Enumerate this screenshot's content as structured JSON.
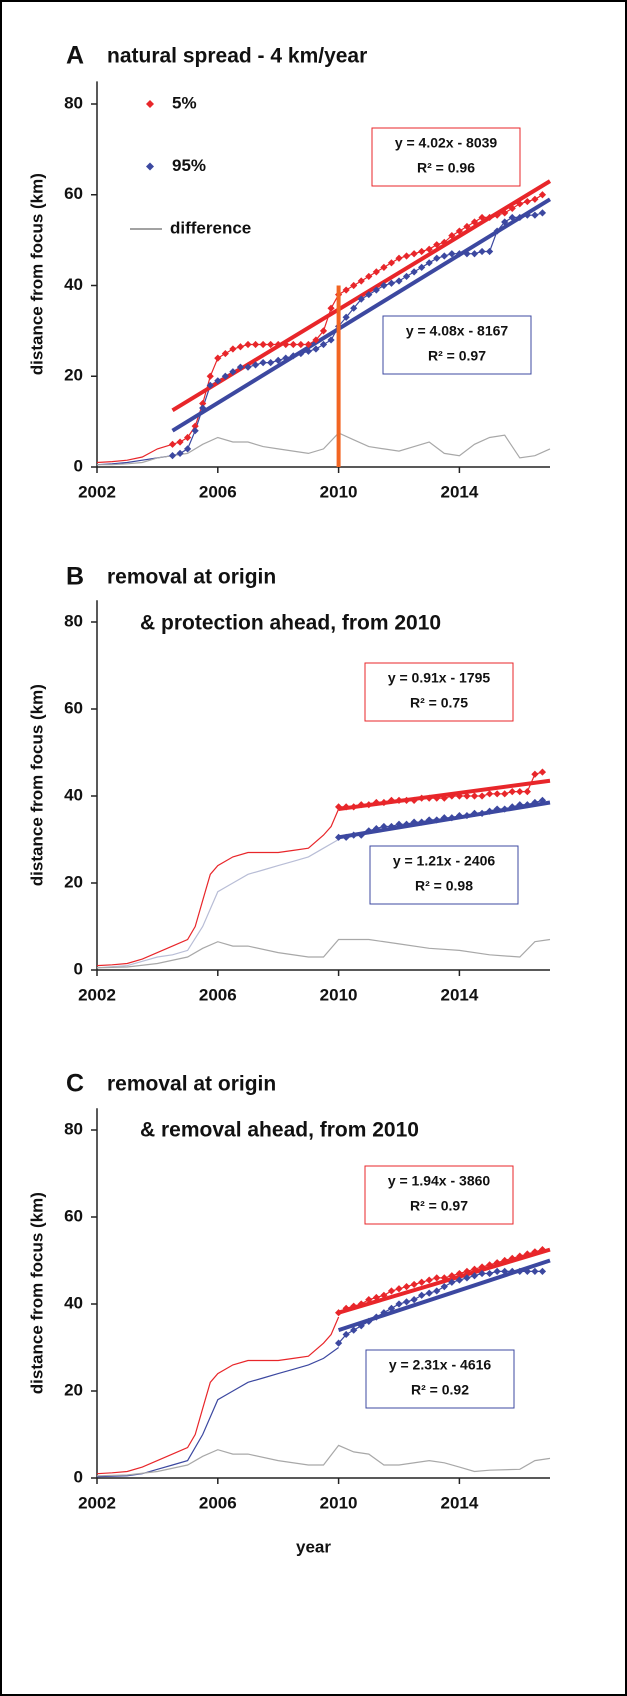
{
  "chart_data": [
    {
      "type": "line",
      "letter": "A",
      "title": [
        "natural spread - 4 km/year"
      ],
      "ylabel": "distance from focus (km)",
      "xlim": [
        2002,
        2017
      ],
      "xticks": [
        2002,
        2006,
        2010,
        2014
      ],
      "ylim": [
        0,
        85
      ],
      "yticks": [
        0,
        20,
        40,
        60,
        80
      ],
      "legend": true,
      "series": [
        {
          "color": "#e8262a",
          "x": [
            2002,
            2002.5,
            2003,
            2003.5,
            2004,
            2004.5
          ],
          "values": [
            1,
            1.2,
            1.5,
            2.2,
            4,
            5
          ]
        },
        {
          "name": "5%",
          "color": "#e8262a",
          "markers": true,
          "x": [
            2004.5,
            2004.75,
            2005,
            2005.25,
            2005.5,
            2005.75,
            2006,
            2006.25,
            2006.5,
            2006.75,
            2007,
            2007.25,
            2007.5,
            2007.75,
            2008,
            2008.25,
            2008.5,
            2008.75,
            2009,
            2009.25,
            2009.5,
            2009.75,
            2010,
            2010.25,
            2010.5,
            2010.75,
            2011,
            2011.25,
            2011.5,
            2011.75,
            2012,
            2012.25,
            2012.5,
            2012.75,
            2013,
            2013.25,
            2013.5,
            2013.75,
            2014,
            2014.25,
            2014.5,
            2014.75,
            2015,
            2015.25,
            2015.5,
            2015.75,
            2016,
            2016.25,
            2016.5,
            2016.75
          ],
          "values": [
            5,
            5.5,
            6.5,
            9,
            14,
            20,
            24,
            25,
            26,
            26.5,
            27,
            27,
            27,
            27,
            27,
            27,
            27,
            27,
            27,
            28,
            30,
            35,
            38,
            39,
            40,
            41,
            42,
            43,
            44,
            45,
            46,
            46.5,
            47,
            47.5,
            48,
            49,
            49.5,
            51,
            52,
            53,
            54,
            55,
            55,
            55.5,
            56,
            57,
            58,
            58.5,
            59,
            60
          ]
        },
        {
          "color": "#3c48a0",
          "x": [
            2002,
            2002.5,
            2003,
            2003.5,
            2004,
            2004.5
          ],
          "values": [
            0.5,
            0.7,
            1,
            1.5,
            2,
            2.5
          ]
        },
        {
          "name": "95%",
          "color": "#3c48a0",
          "markers": true,
          "x": [
            2004.5,
            2004.75,
            2005,
            2005.25,
            2005.5,
            2005.75,
            2006,
            2006.25,
            2006.5,
            2006.75,
            2007,
            2007.25,
            2007.5,
            2007.75,
            2008,
            2008.25,
            2008.5,
            2008.75,
            2009,
            2009.25,
            2009.5,
            2009.75,
            2010,
            2010.25,
            2010.5,
            2010.75,
            2011,
            2011.25,
            2011.5,
            2011.75,
            2012,
            2012.25,
            2012.5,
            2012.75,
            2013,
            2013.25,
            2013.5,
            2013.75,
            2014,
            2014.25,
            2014.5,
            2014.75,
            2015,
            2015.25,
            2015.5,
            2015.75,
            2016,
            2016.25,
            2016.5,
            2016.75
          ],
          "values": [
            2.5,
            3,
            4,
            8,
            13,
            18,
            19,
            20,
            21,
            22,
            22,
            22.5,
            23,
            23,
            23.5,
            24,
            24.5,
            25,
            25.5,
            26,
            27,
            28,
            31,
            33,
            35,
            37,
            38,
            39,
            40,
            40.5,
            41,
            42,
            43,
            44,
            45,
            46,
            46.5,
            47,
            47,
            47,
            47,
            47.5,
            47.5,
            52,
            54,
            55,
            55,
            55.5,
            55.5,
            56
          ]
        },
        {
          "name": "difference",
          "color": "#a8a8a8",
          "x": [
            2002,
            2002.5,
            2003,
            2003.5,
            2004,
            2004.5,
            2005,
            2005.5,
            2006,
            2006.5,
            2007,
            2007.5,
            2008,
            2008.5,
            2009,
            2009.5,
            2010,
            2010.5,
            2011,
            2011.5,
            2012,
            2012.5,
            2013,
            2013.5,
            2014,
            2014.5,
            2015,
            2015.5,
            2016,
            2016.5,
            2017
          ],
          "values": [
            0.5,
            0.5,
            0.7,
            1,
            2,
            2.5,
            3,
            5,
            6.5,
            5.5,
            5.5,
            4.5,
            4,
            3.5,
            3,
            4,
            7.5,
            6,
            4.5,
            4,
            3.5,
            4.5,
            5.5,
            3,
            2.5,
            5,
            6.5,
            7,
            2,
            2.5,
            4
          ]
        }
      ],
      "fits": [
        {
          "color": "#e8262a",
          "x": [
            2004.5,
            2017
          ],
          "values": [
            12.5,
            63
          ],
          "equation": "y = 4.02x - 8039",
          "r2": "R² = 0.96"
        },
        {
          "color": "#3c48a0",
          "x": [
            2004.5,
            2017
          ],
          "values": [
            8,
            59
          ],
          "equation": "y = 4.08x - 8167",
          "r2": "R² = 0.97"
        }
      ],
      "vline": {
        "x": 2010,
        "ymax": 40,
        "color": "#f26522"
      }
    },
    {
      "type": "line",
      "letter": "B",
      "title": [
        "removal at origin",
        "& protection ahead, from 2010"
      ],
      "ylabel": "distance from focus (km)",
      "xlim": [
        2002,
        2017
      ],
      "xticks": [
        2002,
        2006,
        2010,
        2014
      ],
      "ylim": [
        0,
        85
      ],
      "yticks": [
        0,
        20,
        40,
        60,
        80
      ],
      "series": [
        {
          "color": "#e8262a",
          "x": [
            2002,
            2002.5,
            2003,
            2003.5,
            2004,
            2004.5,
            2005,
            2005.25,
            2005.5,
            2005.75,
            2006,
            2006.5,
            2007,
            2007.5,
            2008,
            2008.5,
            2009,
            2009.5,
            2009.75,
            2010
          ],
          "values": [
            1,
            1.2,
            1.5,
            2.5,
            4,
            5.5,
            7,
            10,
            16,
            22,
            24,
            26,
            27,
            27,
            27,
            27.5,
            28,
            31,
            33,
            37
          ]
        },
        {
          "color": "#e8262a",
          "markers": true,
          "x": [
            2010,
            2010.25,
            2010.5,
            2010.75,
            2011,
            2011.25,
            2011.5,
            2011.75,
            2012,
            2012.25,
            2012.5,
            2012.75,
            2013,
            2013.25,
            2013.5,
            2013.75,
            2014,
            2014.25,
            2014.5,
            2014.75,
            2015,
            2015.25,
            2015.5,
            2015.75,
            2016,
            2016.25,
            2016.5,
            2016.75
          ],
          "values": [
            37.5,
            37.5,
            37.5,
            38,
            38,
            38.5,
            38.5,
            39,
            39,
            39,
            39,
            39.5,
            39.5,
            39.5,
            39.5,
            40,
            40,
            40,
            40,
            40,
            40.5,
            40.5,
            40.5,
            41,
            41,
            41,
            45,
            45.5
          ]
        },
        {
          "color": "#b8bdd6",
          "x": [
            2002,
            2003,
            2003.5,
            2004,
            2004.5,
            2005,
            2005.5,
            2006,
            2006.5,
            2007,
            2007.5,
            2008,
            2008.5,
            2009,
            2009.5,
            2010
          ],
          "values": [
            0.5,
            1,
            2,
            3,
            3.5,
            4.5,
            10,
            18,
            20,
            22,
            23,
            24,
            25,
            26,
            28,
            30
          ]
        },
        {
          "color": "#3c48a0",
          "markers": true,
          "x": [
            2010,
            2010.25,
            2010.5,
            2010.75,
            2011,
            2011.25,
            2011.5,
            2011.75,
            2012,
            2012.25,
            2012.5,
            2012.75,
            2013,
            2013.25,
            2013.5,
            2013.75,
            2014,
            2014.25,
            2014.5,
            2014.75,
            2015,
            2015.25,
            2015.5,
            2015.75,
            2016,
            2016.25,
            2016.5,
            2016.75
          ],
          "values": [
            30.5,
            30.5,
            31,
            31,
            32,
            32.5,
            33,
            33,
            33.5,
            33.5,
            34,
            34,
            34.5,
            34.5,
            35,
            35,
            35.5,
            35.5,
            36,
            36,
            36.5,
            37,
            37,
            37.5,
            38,
            38,
            38.5,
            39
          ]
        },
        {
          "color": "#a8a8a8",
          "x": [
            2002,
            2003,
            2004,
            2005,
            2005.5,
            2006,
            2006.5,
            2007,
            2008,
            2009,
            2009.5,
            2010,
            2011,
            2012,
            2013,
            2014,
            2015,
            2016,
            2016.5,
            2017
          ],
          "values": [
            0.5,
            0.7,
            1.5,
            3,
            5,
            6.5,
            5.5,
            5.5,
            4,
            3,
            3,
            7,
            7,
            6,
            5,
            4.5,
            3.5,
            3,
            6.5,
            7
          ]
        }
      ],
      "fits": [
        {
          "color": "#e8262a",
          "x": [
            2010,
            2017
          ],
          "values": [
            37,
            43.5
          ],
          "equation": "y = 0.91x - 1795",
          "r2": "R² = 0.75"
        },
        {
          "color": "#3c48a0",
          "x": [
            2010,
            2017
          ],
          "values": [
            30.5,
            38.5
          ],
          "equation": "y = 1.21x - 2406",
          "r2": "R² = 0.98"
        }
      ]
    },
    {
      "type": "line",
      "letter": "C",
      "title": [
        "removal at origin",
        "& removal ahead, from 2010"
      ],
      "ylabel": "distance from focus (km)",
      "xlabel": "year",
      "xlim": [
        2002,
        2017
      ],
      "xticks": [
        2002,
        2006,
        2010,
        2014
      ],
      "ylim": [
        0,
        85
      ],
      "yticks": [
        0,
        20,
        40,
        60,
        80
      ],
      "series": [
        {
          "color": "#e8262a",
          "x": [
            2002,
            2002.5,
            2003,
            2003.5,
            2004,
            2004.5,
            2005,
            2005.25,
            2005.5,
            2005.75,
            2006,
            2006.5,
            2007,
            2007.5,
            2008,
            2008.5,
            2009,
            2009.5,
            2009.75,
            2010
          ],
          "values": [
            1,
            1.2,
            1.5,
            2.5,
            4,
            5.5,
            7,
            10,
            16,
            22,
            24,
            26,
            27,
            27,
            27,
            27.5,
            28,
            31,
            33,
            37
          ]
        },
        {
          "color": "#e8262a",
          "markers": true,
          "x": [
            2010,
            2010.25,
            2010.5,
            2010.75,
            2011,
            2011.25,
            2011.5,
            2011.75,
            2012,
            2012.25,
            2012.5,
            2012.75,
            2013,
            2013.25,
            2013.5,
            2013.75,
            2014,
            2014.25,
            2014.5,
            2014.75,
            2015,
            2015.25,
            2015.5,
            2015.75,
            2016,
            2016.25,
            2016.5,
            2016.75
          ],
          "values": [
            38,
            39,
            39.5,
            40,
            41,
            41.5,
            42,
            43,
            43.5,
            44,
            44.5,
            45,
            45.5,
            46,
            46,
            46.5,
            47,
            47.5,
            48,
            48.5,
            49,
            49.5,
            50,
            50.5,
            51,
            51.5,
            52,
            52.5
          ]
        },
        {
          "color": "#3c48a0",
          "x": [
            2002,
            2003,
            2003.5,
            2004,
            2004.5,
            2005,
            2005.5,
            2006,
            2006.5,
            2007,
            2007.5,
            2008,
            2008.5,
            2009,
            2009.5,
            2010
          ],
          "values": [
            0.3,
            0.5,
            1,
            2,
            3,
            4,
            10,
            18,
            20,
            22,
            23,
            24,
            25,
            26,
            27.5,
            30
          ]
        },
        {
          "color": "#3c48a0",
          "markers": true,
          "x": [
            2010,
            2010.25,
            2010.5,
            2010.75,
            2011,
            2011.25,
            2011.5,
            2011.75,
            2012,
            2012.25,
            2012.5,
            2012.75,
            2013,
            2013.25,
            2013.5,
            2013.75,
            2014,
            2014.25,
            2014.5,
            2014.75,
            2015,
            2015.25,
            2015.5,
            2015.75,
            2016,
            2016.25,
            2016.5,
            2016.75
          ],
          "values": [
            31,
            33,
            34,
            35,
            36,
            37,
            38,
            39,
            40,
            40.5,
            41,
            42,
            42.5,
            43,
            44,
            45,
            45.5,
            46,
            46.5,
            47,
            47,
            47.5,
            47.5,
            47.5,
            47.5,
            47.5,
            47.5,
            47.5
          ]
        },
        {
          "color": "#a8a8a8",
          "x": [
            2002,
            2003,
            2004,
            2005,
            2005.5,
            2006,
            2006.5,
            2007,
            2008,
            2009,
            2009.5,
            2010,
            2010.5,
            2011,
            2011.5,
            2012,
            2013,
            2013.5,
            2014,
            2014.5,
            2015,
            2016,
            2016.5,
            2017
          ],
          "values": [
            0.5,
            0.7,
            1.5,
            3,
            5,
            6.5,
            5.5,
            5.5,
            4,
            3,
            3,
            7.5,
            6,
            5.5,
            3,
            3,
            4,
            3.5,
            2.5,
            1.5,
            1.8,
            2,
            4,
            4.5
          ]
        }
      ],
      "fits": [
        {
          "color": "#e8262a",
          "x": [
            2010,
            2017
          ],
          "values": [
            38,
            52.5
          ],
          "equation": "y = 1.94x - 3860",
          "r2": "R² = 0.97"
        },
        {
          "color": "#3c48a0",
          "x": [
            2010,
            2017
          ],
          "values": [
            34,
            50
          ],
          "equation": "y = 2.31x - 4616",
          "r2": "R² = 0.92"
        }
      ]
    }
  ]
}
